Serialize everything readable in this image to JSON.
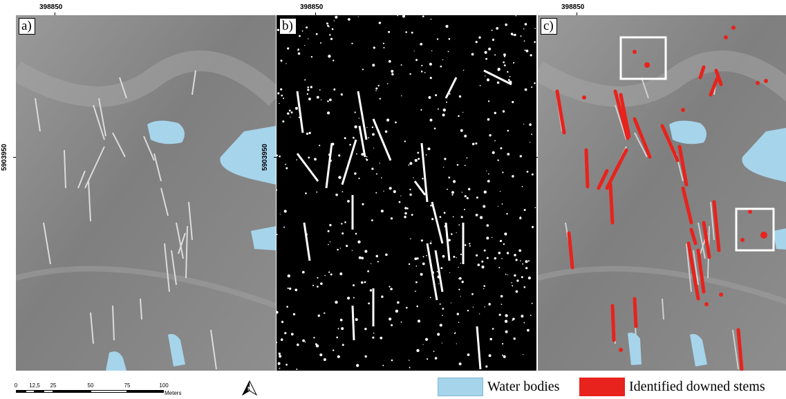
{
  "panels": [
    {
      "label": "a)",
      "x_coord": "398850",
      "y_coord": "5903950"
    },
    {
      "label": "b)",
      "x_coord": "398850",
      "y_coord": "5903950"
    },
    {
      "label": "c)",
      "x_coord": "398850",
      "y_coord": "5903950"
    }
  ],
  "scale_bar": {
    "ticks": [
      "0",
      "12,5",
      "25",
      "50",
      "75",
      "100"
    ],
    "units": "Meters"
  },
  "north_arrow": {
    "label": "N",
    "icon": "north-arrow-icon"
  },
  "legend": [
    {
      "label": "Water bodies",
      "color": "#a6d4eb"
    },
    {
      "label": "Identified downed stems",
      "color": "#e8221c"
    }
  ],
  "colors": {
    "hillshade": "#8a8a8a",
    "water": "#a6d4eb",
    "stems": "#e8221c",
    "binary_background": "#000000",
    "binary_foreground": "#ffffff"
  }
}
